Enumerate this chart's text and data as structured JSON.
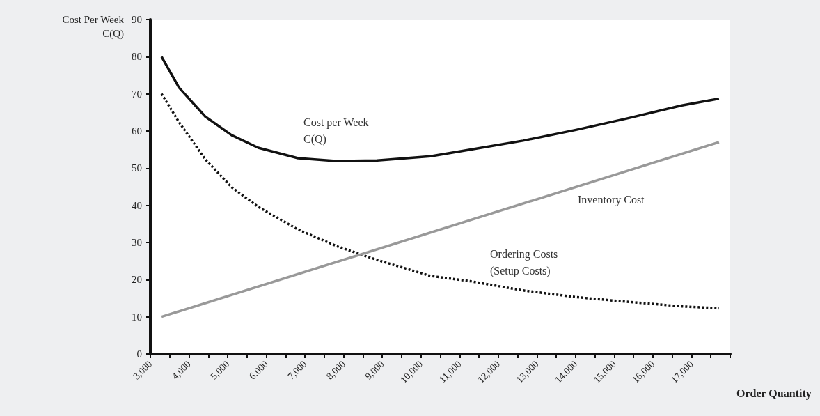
{
  "chart_data": {
    "type": "line",
    "xlabel": "Order Quantity",
    "ylabel": "Cost Per Week\nC(Q)",
    "xlim": [
      3000,
      18000
    ],
    "xticks": [
      {
        "value": 3000,
        "label": "3,000"
      },
      {
        "value": 3500,
        "label": null
      },
      {
        "value": 4000,
        "label": "4,000"
      },
      {
        "value": 4500,
        "label": null
      },
      {
        "value": 5000,
        "label": "5,000"
      },
      {
        "value": 5500,
        "label": null
      },
      {
        "value": 6000,
        "label": "6,000"
      },
      {
        "value": 6500,
        "label": null
      },
      {
        "value": 7000,
        "label": "7,000"
      },
      {
        "value": 7500,
        "label": null
      },
      {
        "value": 8000,
        "label": "8,000"
      },
      {
        "value": 8500,
        "label": null
      },
      {
        "value": 9000,
        "label": "9,000"
      },
      {
        "value": 9500,
        "label": null
      },
      {
        "value": 10000,
        "label": "10,000"
      },
      {
        "value": 10500,
        "label": null
      },
      {
        "value": 11000,
        "label": "11,000"
      },
      {
        "value": 11500,
        "label": null
      },
      {
        "value": 12000,
        "label": "12,000"
      },
      {
        "value": 12500,
        "label": null
      },
      {
        "value": 13000,
        "label": "13,000"
      },
      {
        "value": 13500,
        "label": null
      },
      {
        "value": 14000,
        "label": "14,000"
      },
      {
        "value": 14500,
        "label": null
      },
      {
        "value": 15000,
        "label": "15,000"
      },
      {
        "value": 15500,
        "label": null
      },
      {
        "value": 16000,
        "label": "16,000"
      },
      {
        "value": 16500,
        "label": null
      },
      {
        "value": 17000,
        "label": "17,000"
      },
      {
        "value": 17500,
        "label": null
      },
      {
        "value": 18000,
        "label": null
      }
    ],
    "ylim": [
      0,
      90
    ],
    "yticks": [
      0,
      10,
      20,
      30,
      40,
      50,
      60,
      70,
      80,
      90
    ],
    "grid": false,
    "marker": "none",
    "series": [
      {
        "color": "#111111",
        "line_style": "solid",
        "x": [
          3290,
          3740,
          4420,
          5100,
          5790,
          6820,
          7850,
          8870,
          10250,
          11270,
          12640,
          14010,
          15380,
          16750,
          17710
        ],
        "values": [
          80,
          71.7,
          63.9,
          58.9,
          55.5,
          52.7,
          51.9,
          52.1,
          53.2,
          55,
          57.4,
          60.3,
          63.5,
          66.9,
          68.7
        ]
      },
      {
        "color": "#111111",
        "line_style": "dotted",
        "x": [
          3290,
          3740,
          4420,
          5100,
          5790,
          6820,
          7850,
          8870,
          10250,
          11270,
          12640,
          14010,
          15380,
          16750,
          17710
        ],
        "values": [
          70,
          62.4,
          52.4,
          44.9,
          39.6,
          33.5,
          28.9,
          25.3,
          21,
          19.6,
          17.1,
          15.3,
          14,
          12.8,
          12.3
        ]
      },
      {
        "color": "#999999",
        "line_style": "solid",
        "x": [
          3290,
          17710
        ],
        "values": [
          10,
          57
        ]
      }
    ],
    "annotations": [
      "Cost per Week\nC(Q)",
      "Inventory Cost",
      "Ordering Costs\n(Setup Costs)"
    ]
  }
}
